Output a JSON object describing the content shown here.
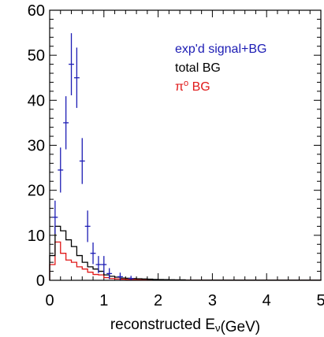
{
  "chart_data": {
    "type": "line",
    "xlabel": {
      "main": "reconstructed E",
      "subscript": "ν",
      "unit": "(GeV)"
    },
    "ylabel": "",
    "xlim": [
      0,
      5
    ],
    "ylim": [
      0,
      60
    ],
    "x_ticks": [
      "0",
      "1",
      "2",
      "3",
      "4",
      "5"
    ],
    "y_ticks": [
      "0",
      "10",
      "20",
      "30",
      "40",
      "50",
      "60"
    ],
    "grid": false,
    "legend_position": "top-right",
    "bin_edges": [
      0,
      0.1,
      0.2,
      0.3,
      0.4,
      0.5,
      0.6,
      0.7,
      0.8,
      0.9,
      1.0,
      1.1,
      1.2,
      1.3,
      1.4,
      1.5,
      1.6,
      1.7,
      1.8,
      1.9,
      2.0,
      2.1,
      2.2,
      2.3,
      2.4,
      2.5,
      5.0
    ],
    "series": [
      {
        "name": "exp'd signal+BG",
        "name_prefix": "exp'd signal+BG",
        "name_sup": "",
        "name_suffix": "",
        "color": "#1c1cb4",
        "style": "errorbar",
        "x": [
          0.1,
          0.2,
          0.3,
          0.4,
          0.5,
          0.6,
          0.7,
          0.8,
          0.9,
          1.0,
          1.1,
          1.3,
          1.5
        ],
        "y": [
          14,
          24.5,
          35,
          48,
          45,
          26.5,
          12,
          6,
          3.5,
          3.5,
          1.5,
          0.8,
          0.4
        ],
        "yerr": [
          3.7,
          5.0,
          5.9,
          6.9,
          6.7,
          5.1,
          3.5,
          2.4,
          1.9,
          1.9,
          1.2,
          0.9,
          0.6
        ]
      },
      {
        "name": "total BG",
        "name_prefix": "total BG",
        "name_sup": "",
        "name_suffix": "",
        "color": "#000000",
        "style": "step",
        "values": [
          5.5,
          12.0,
          11.0,
          9.0,
          7.5,
          5.5,
          4.0,
          3.0,
          2.5,
          2.0,
          1.2,
          0.9,
          0.7,
          0.5,
          0.45,
          0.4,
          0.35,
          0.3,
          0.25,
          0.2,
          0.18,
          0.15,
          0.12,
          0.1,
          0.1,
          0.05
        ]
      },
      {
        "name": "πº BG",
        "name_prefix": "π",
        "name_sup": "o",
        "name_suffix": " BG",
        "color": "#e01818",
        "style": "step",
        "values": [
          3.5,
          8.5,
          6.0,
          4.5,
          4.0,
          3.0,
          2.5,
          1.8,
          1.3,
          1.2,
          0.6,
          0.4,
          0.3,
          0.25,
          0.2,
          0.15,
          0.12,
          0.1,
          0.1,
          0.08,
          0.06,
          0.05,
          0.04,
          0.03,
          0.03,
          0.02
        ]
      }
    ]
  }
}
